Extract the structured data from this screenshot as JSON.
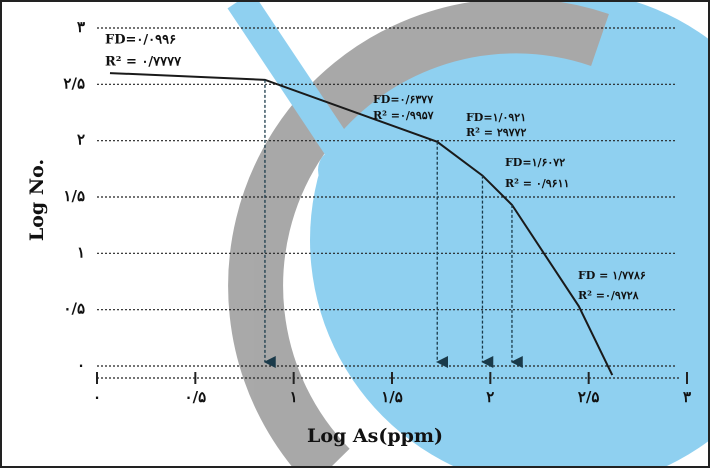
{
  "chart_data": {
    "type": "line",
    "xlabel": "Log As(ppm)",
    "ylabel": "Log No.",
    "x": [
      0.066,
      0.854,
      1.73,
      1.96,
      2.11,
      2.45,
      2.62
    ],
    "values": [
      2.6,
      2.54,
      1.99,
      1.69,
      1.43,
      0.53,
      -0.08
    ],
    "color": "#1a1a1a",
    "xlim": [
      0,
      3
    ],
    "ylim": [
      0,
      3
    ],
    "xticks": [
      {
        "value": 0,
        "label": "۰"
      },
      {
        "value": 0.5,
        "label": "۰/۵"
      },
      {
        "value": 1,
        "label": "۱"
      },
      {
        "value": 1.5,
        "label": "۱/۵"
      },
      {
        "value": 2,
        "label": "۲"
      },
      {
        "value": 2.5,
        "label": "۲/۵"
      },
      {
        "value": 3,
        "label": "۳"
      }
    ],
    "yticks": [
      {
        "value": 0,
        "label": "۰"
      },
      {
        "value": 0.5,
        "label": "۰/۵"
      },
      {
        "value": 1,
        "label": "۱"
      },
      {
        "value": 1.5,
        "label": "۱/۵"
      },
      {
        "value": 2,
        "label": "۲"
      },
      {
        "value": 2.5,
        "label": "۲/۵"
      },
      {
        "value": 3,
        "label": "۳"
      }
    ],
    "grid": true,
    "annotations": [
      {
        "fd": "FD=۰/۰۹۹۶",
        "r2": "R² = ۰/۷۷۷۷"
      },
      {
        "fd": "FD=۰/۶۳۷۷",
        "r2": "R² =۰/۹۹۵۷"
      },
      {
        "fd": "FD=۱/۰۹۲۱",
        "r2": "R² = ۲۹۷۷۲"
      },
      {
        "fd": "FD=۱/۶۰۷۲",
        "r2": "R² = ۰/۹۶۱۱"
      },
      {
        "fd": "FD = ۱/۷۷۸۶",
        "r2": "R² =۰/۹۷۲۸"
      }
    ]
  }
}
